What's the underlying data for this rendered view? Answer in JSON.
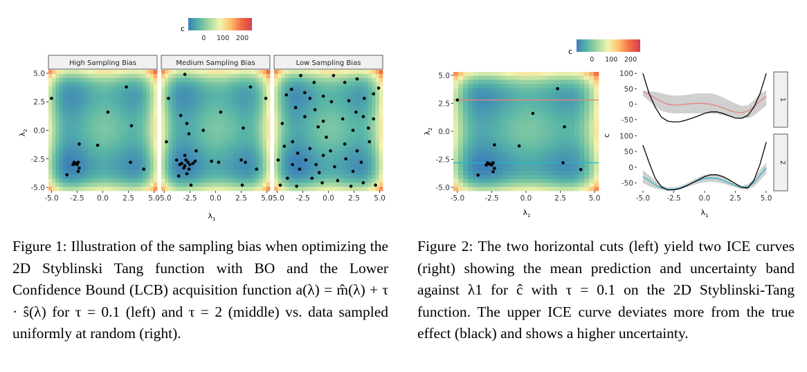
{
  "colorbar": {
    "label": "c",
    "ticks": [
      {
        "value": 0,
        "label": "0"
      },
      {
        "value": 100,
        "label": "100"
      },
      {
        "value": 200,
        "label": "200"
      }
    ],
    "range": [
      -80,
      250
    ],
    "colors": [
      "#3b7fb8",
      "#58b5a7",
      "#a7d9a0",
      "#f3f3b0",
      "#fdc170",
      "#f46d43",
      "#d53e4f"
    ]
  },
  "figure1": {
    "panels": [
      {
        "title": "High Sampling Bias",
        "points": [
          [
            -5.0,
            2.8
          ],
          [
            2.3,
            3.8
          ],
          [
            2.8,
            0.4
          ],
          [
            0.5,
            1.6
          ],
          [
            -0.5,
            -1.3
          ],
          [
            -2.3,
            -1.2
          ],
          [
            -2.8,
            -2.8
          ],
          [
            -2.6,
            -2.9
          ],
          [
            -2.4,
            -2.8
          ],
          [
            -2.5,
            -3.0
          ],
          [
            -2.3,
            -3.3
          ],
          [
            -2.4,
            -3.6
          ],
          [
            -2.7,
            -2.9
          ],
          [
            -2.9,
            -3.0
          ],
          [
            -3.5,
            -3.9
          ],
          [
            2.7,
            -2.8
          ],
          [
            4.0,
            -3.4
          ]
        ]
      },
      {
        "title": "Medium Sampling Bias",
        "points": [
          [
            -3.0,
            4.9
          ],
          [
            3.4,
            3.8
          ],
          [
            4.9,
            2.8
          ],
          [
            -4.6,
            2.8
          ],
          [
            -3.4,
            1.3
          ],
          [
            0.5,
            1.6
          ],
          [
            -2.8,
            0.6
          ],
          [
            -1.2,
            0.0
          ],
          [
            2.7,
            0.2
          ],
          [
            -2.6,
            -0.3
          ],
          [
            -4.8,
            -1.0
          ],
          [
            -3.8,
            -2.6
          ],
          [
            -3.3,
            -2.9
          ],
          [
            -3.0,
            -3.1
          ],
          [
            -2.7,
            -2.8
          ],
          [
            -2.5,
            -3.0
          ],
          [
            -2.9,
            -2.6
          ],
          [
            -3.1,
            -3.3
          ],
          [
            -2.2,
            -2.9
          ],
          [
            -2.6,
            -3.4
          ],
          [
            -3.0,
            -2.2
          ],
          [
            -2.0,
            -2.7
          ],
          [
            -3.5,
            -3.0
          ],
          [
            -3.6,
            -4.0
          ],
          [
            -2.8,
            -3.8
          ],
          [
            -1.9,
            -1.8
          ],
          [
            -0.4,
            -2.7
          ],
          [
            0.3,
            -2.8
          ],
          [
            2.5,
            -2.6
          ],
          [
            2.9,
            -2.8
          ],
          [
            2.6,
            -4.8
          ],
          [
            4.0,
            -3.4
          ],
          [
            -2.4,
            -4.8
          ]
        ]
      },
      {
        "title": "Low Sampling Bias",
        "points": [
          [
            -2.7,
            4.8
          ],
          [
            0.5,
            4.8
          ],
          [
            1.6,
            4.2
          ],
          [
            2.8,
            4.5
          ],
          [
            4.9,
            3.7
          ],
          [
            4.4,
            3.2
          ],
          [
            -1.4,
            4.2
          ],
          [
            -3.6,
            3.6
          ],
          [
            -2.3,
            3.3
          ],
          [
            -4.1,
            3.1
          ],
          [
            -0.5,
            3.0
          ],
          [
            -1.8,
            2.8
          ],
          [
            0.3,
            2.5
          ],
          [
            2.0,
            2.6
          ],
          [
            3.5,
            2.8
          ],
          [
            -3.2,
            2.0
          ],
          [
            -1.3,
            1.8
          ],
          [
            2.7,
            1.6
          ],
          [
            3.4,
            1.2
          ],
          [
            4.4,
            1.0
          ],
          [
            -2.3,
            1.2
          ],
          [
            1.4,
            1.0
          ],
          [
            -0.5,
            0.8
          ],
          [
            -4.5,
            0.6
          ],
          [
            -1.0,
            0.3
          ],
          [
            2.4,
            0.0
          ],
          [
            3.9,
            0.2
          ],
          [
            -0.2,
            -0.6
          ],
          [
            -3.5,
            -1.0
          ],
          [
            1.6,
            -1.2
          ],
          [
            4.0,
            -1.0
          ],
          [
            -4.3,
            -1.4
          ],
          [
            -1.8,
            -1.6
          ],
          [
            0.2,
            -1.8
          ],
          [
            2.8,
            -1.8
          ],
          [
            -3.0,
            -2.0
          ],
          [
            -0.5,
            -2.2
          ],
          [
            -4.9,
            -2.6
          ],
          [
            -2.2,
            -2.6
          ],
          [
            1.7,
            -2.5
          ],
          [
            3.2,
            -2.8
          ],
          [
            -3.5,
            -3.0
          ],
          [
            -1.2,
            -3.0
          ],
          [
            0.6,
            -3.2
          ],
          [
            -2.8,
            -3.4
          ],
          [
            -0.9,
            -3.7
          ],
          [
            2.4,
            -3.6
          ],
          [
            -4.0,
            -4.2
          ],
          [
            -1.6,
            -4.2
          ],
          [
            0.9,
            -4.4
          ],
          [
            3.4,
            -4.6
          ],
          [
            -4.7,
            -4.8
          ],
          [
            -0.6,
            -4.6
          ],
          [
            2.2,
            -4.9
          ],
          [
            4.6,
            -4.8
          ],
          [
            -3.1,
            -4.9
          ]
        ]
      }
    ],
    "x_ticks": [
      "-5.0",
      "-2.5",
      "0.0",
      "2.5",
      "5.0"
    ],
    "y_ticks": [
      "5.0",
      "2.5",
      "0.0",
      "-2.5",
      "-5.0"
    ],
    "xlabel": "λ",
    "xlabel_sub": "1",
    "ylabel": "λ",
    "ylabel_sub": "2",
    "caption": "Figure 1: Illustration of the sampling bias when optimizing the 2D Styblinski Tang function with BO and the Lower Confidence Bound (LCB) acquisition function a(λ) = m̂(λ) + τ · ŝ(λ) for τ = 0.1 (left) and τ = 2 (middle) vs. data sampled uniformly at random (right)."
  },
  "figure2": {
    "points": [
      [
        -5.0,
        2.8
      ],
      [
        2.3,
        3.8
      ],
      [
        2.8,
        0.4
      ],
      [
        0.5,
        1.6
      ],
      [
        -0.5,
        -1.3
      ],
      [
        -2.3,
        -1.2
      ],
      [
        -2.8,
        -2.8
      ],
      [
        -2.6,
        -2.9
      ],
      [
        -2.4,
        -2.8
      ],
      [
        -2.5,
        -3.0
      ],
      [
        -2.3,
        -3.3
      ],
      [
        -2.4,
        -3.6
      ],
      [
        -2.7,
        -2.9
      ],
      [
        -2.9,
        -3.0
      ],
      [
        -3.5,
        -3.9
      ],
      [
        2.7,
        -2.8
      ],
      [
        4.0,
        -3.4
      ]
    ],
    "cuts": [
      {
        "lambda2": 2.8,
        "color": "#e8827a"
      },
      {
        "lambda2": -2.8,
        "color": "#2bb3c8"
      }
    ],
    "x_ticks": [
      "-5.0",
      "-2.5",
      "0.0",
      "2.5",
      "5.0"
    ],
    "y_ticks": [
      "5.0",
      "2.5",
      "0.0",
      "-2.5",
      "-5.0"
    ],
    "xlabel": "λ",
    "xlabel_sub": "1",
    "ylabel": "λ",
    "ylabel_sub": "2",
    "ice": {
      "ylabel": "c",
      "y_ticks": [
        "100",
        "50",
        "0",
        "-50"
      ],
      "x_ticks": [
        "-5.0",
        "-2.5",
        "0.0",
        "2.5",
        "5.0"
      ],
      "xlabel": "λ",
      "xlabel_sub": "1",
      "strips": [
        "1",
        "2"
      ],
      "true_color": "#000000",
      "band_color": "#c8c8c8"
    },
    "caption": "Figure 2: The two horizontal cuts (left) yield two ICE curves (right) showing the mean prediction and uncertainty band against λ1 for ĉ with τ = 0.1 on the 2D Styblinski-Tang function. The upper ICE curve deviates more from the true effect (black) and shows a higher uncertainty."
  },
  "chart_data": [
    {
      "type": "heatmap",
      "title": "High Sampling Bias",
      "xlabel": "λ1",
      "ylabel": "λ2",
      "xlim": [
        -5,
        5
      ],
      "ylim": [
        -5,
        5
      ],
      "color_label": "c",
      "color_ticks": [
        0,
        100,
        200
      ]
    },
    {
      "type": "heatmap",
      "title": "Medium Sampling Bias",
      "xlabel": "λ1",
      "ylabel": "λ2",
      "xlim": [
        -5,
        5
      ],
      "ylim": [
        -5,
        5
      ],
      "color_label": "c",
      "color_ticks": [
        0,
        100,
        200
      ]
    },
    {
      "type": "heatmap",
      "title": "Low Sampling Bias",
      "xlabel": "λ1",
      "ylabel": "λ2",
      "xlim": [
        -5,
        5
      ],
      "ylim": [
        -5,
        5
      ],
      "color_label": "c",
      "color_ticks": [
        0,
        100,
        200
      ]
    },
    {
      "type": "heatmap",
      "xlabel": "λ1",
      "ylabel": "λ2",
      "xlim": [
        -5,
        5
      ],
      "ylim": [
        -5,
        5
      ],
      "horizontal_cuts": [
        2.8,
        -2.8
      ]
    },
    {
      "type": "line",
      "xlabel": "λ1",
      "ylabel": "c",
      "xlim": [
        -5,
        5
      ],
      "ylim": [
        -75,
        105
      ],
      "x": [
        -5.0,
        -4.5,
        -4.0,
        -3.5,
        -3.0,
        -2.5,
        -2.0,
        -1.5,
        -1.0,
        -0.5,
        0.0,
        0.5,
        1.0,
        1.5,
        2.0,
        2.5,
        3.0,
        3.5,
        4.0,
        4.5,
        5.0
      ],
      "series": [
        {
          "name": "1",
          "label": "true effect",
          "values": [
            100,
            35,
            -10,
            -42,
            -55,
            -58,
            -57,
            -52,
            -45,
            -38,
            -30,
            -25,
            -25,
            -30,
            -38,
            -45,
            -46,
            -37,
            -10,
            35,
            100
          ]
        },
        {
          "name": "1",
          "label": "mean prediction",
          "values": [
            40,
            32,
            20,
            8,
            0,
            -3,
            -2,
            0,
            2,
            3,
            2,
            0,
            -5,
            -12,
            -20,
            -26,
            -28,
            -22,
            -8,
            10,
            25
          ]
        },
        {
          "name": "1",
          "label": "band lower",
          "values": [
            28,
            10,
            -8,
            -22,
            -28,
            -30,
            -30,
            -30,
            -30,
            -30,
            -30,
            -30,
            -32,
            -36,
            -40,
            -42,
            -45,
            -45,
            -38,
            -20,
            -5
          ]
        },
        {
          "name": "1",
          "label": "band upper",
          "values": [
            45,
            42,
            40,
            36,
            30,
            28,
            28,
            30,
            33,
            35,
            36,
            35,
            30,
            22,
            12,
            2,
            -6,
            -4,
            12,
            35,
            45
          ]
        }
      ]
    },
    {
      "type": "line",
      "xlabel": "λ1",
      "ylabel": "c",
      "xlim": [
        -5,
        5
      ],
      "ylim": [
        -75,
        105
      ],
      "x": [
        -5.0,
        -4.5,
        -4.0,
        -3.5,
        -3.0,
        -2.5,
        -2.0,
        -1.5,
        -1.0,
        -0.5,
        0.0,
        0.5,
        1.0,
        1.5,
        2.0,
        2.5,
        3.0,
        3.5,
        4.0,
        4.5,
        5.0
      ],
      "series": [
        {
          "name": "2",
          "label": "true effect",
          "values": [
            70,
            15,
            -35,
            -62,
            -72,
            -72,
            -68,
            -60,
            -50,
            -40,
            -30,
            -24,
            -24,
            -30,
            -40,
            -52,
            -64,
            -66,
            -42,
            10,
            80
          ]
        },
        {
          "name": "2",
          "label": "mean prediction",
          "values": [
            -30,
            -42,
            -56,
            -66,
            -70,
            -70,
            -66,
            -58,
            -50,
            -42,
            -36,
            -34,
            -36,
            -42,
            -50,
            -58,
            -64,
            -62,
            -50,
            -25,
            -2
          ]
        },
        {
          "name": "2",
          "label": "band lower",
          "values": [
            -50,
            -60,
            -68,
            -72,
            -74,
            -74,
            -70,
            -64,
            -58,
            -52,
            -48,
            -46,
            -48,
            -52,
            -58,
            -64,
            -70,
            -70,
            -62,
            -42,
            -20
          ]
        },
        {
          "name": "2",
          "label": "band upper",
          "values": [
            -10,
            -25,
            -42,
            -58,
            -64,
            -64,
            -60,
            -52,
            -42,
            -32,
            -24,
            -22,
            -24,
            -32,
            -42,
            -52,
            -58,
            -54,
            -38,
            -8,
            15
          ]
        }
      ]
    }
  ]
}
